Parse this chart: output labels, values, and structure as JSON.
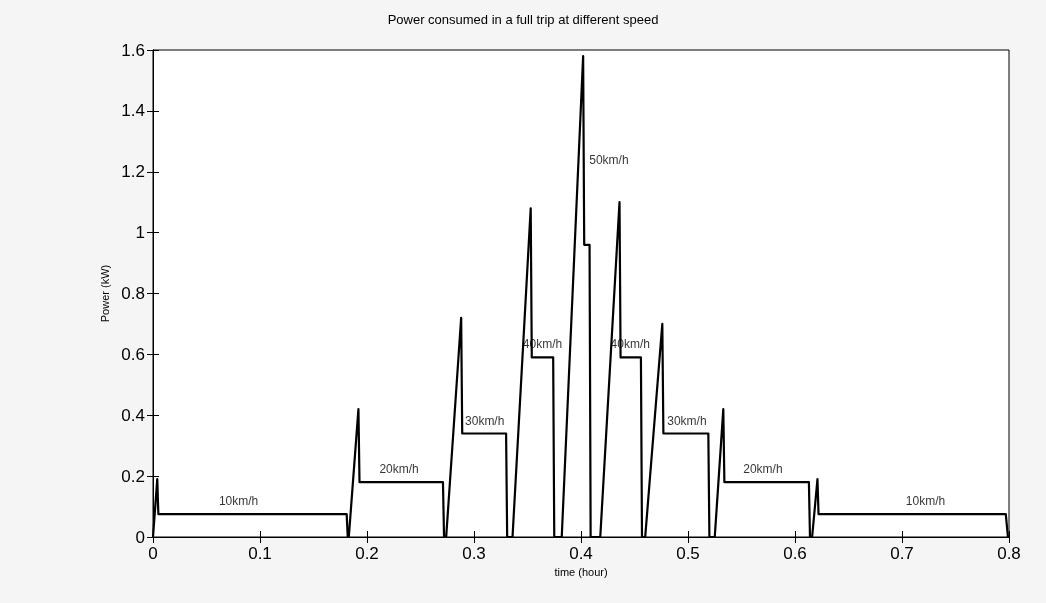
{
  "chart_data": {
    "type": "line",
    "title": "Power consumed in a full trip at different speed",
    "xlabel": "time (hour)",
    "ylabel": "Power (kW)",
    "series": [
      {
        "color": "#000000",
        "x": [
          0,
          0.004,
          0.005,
          0.181,
          0.182,
          0.183,
          0.192,
          0.193,
          0.271,
          0.272,
          0.274,
          0.288,
          0.289,
          0.33,
          0.331,
          0.336,
          0.353,
          0.354,
          0.374,
          0.375,
          0.382,
          0.402,
          0.403,
          0.408,
          0.409,
          0.418,
          0.436,
          0.437,
          0.456,
          0.457,
          0.46,
          0.476,
          0.477,
          0.519,
          0.52,
          0.525,
          0.533,
          0.534,
          0.613,
          0.614,
          0.616,
          0.621,
          0.622,
          0.797,
          0.799
        ],
        "values": [
          0,
          0.19,
          0.075,
          0.075,
          0,
          0,
          0.42,
          0.18,
          0.18,
          0,
          0,
          0.72,
          0.34,
          0.34,
          0,
          0,
          1.08,
          0.59,
          0.59,
          0,
          0,
          1.58,
          0.96,
          0.96,
          0,
          0,
          1.1,
          0.59,
          0.59,
          0,
          0,
          0.7,
          0.34,
          0.34,
          0,
          0,
          0.42,
          0.18,
          0.18,
          0,
          0,
          0.19,
          0.075,
          0.075,
          0
        ]
      }
    ],
    "xlim": [
      0,
      0.8
    ],
    "xticks": [
      0,
      0.1,
      0.2,
      0.3,
      0.4,
      0.5,
      0.6,
      0.7,
      0.8
    ],
    "ylim": [
      0,
      1.6
    ],
    "yticks": [
      0,
      0.2,
      0.4,
      0.6,
      0.8,
      1,
      1.2,
      1.4,
      1.6
    ],
    "grid": false,
    "marker": "none",
    "line_style": "solid",
    "annotations": [
      {
        "text": "10km/h",
        "x": 0.08,
        "y": 0.075
      },
      {
        "text": "20km/h",
        "x": 0.23,
        "y": 0.18
      },
      {
        "text": "30km/h",
        "x": 0.31,
        "y": 0.34
      },
      {
        "text": "40km/h",
        "x": 0.364,
        "y": 0.59
      },
      {
        "text": "50km/h",
        "x": 0.403,
        "y": 1.24
      },
      {
        "text": "40km/h",
        "x": 0.446,
        "y": 0.59
      },
      {
        "text": "30km/h",
        "x": 0.499,
        "y": 0.34
      },
      {
        "text": "20km/h",
        "x": 0.57,
        "y": 0.18
      },
      {
        "text": "10km/h",
        "x": 0.722,
        "y": 0.075
      }
    ]
  }
}
